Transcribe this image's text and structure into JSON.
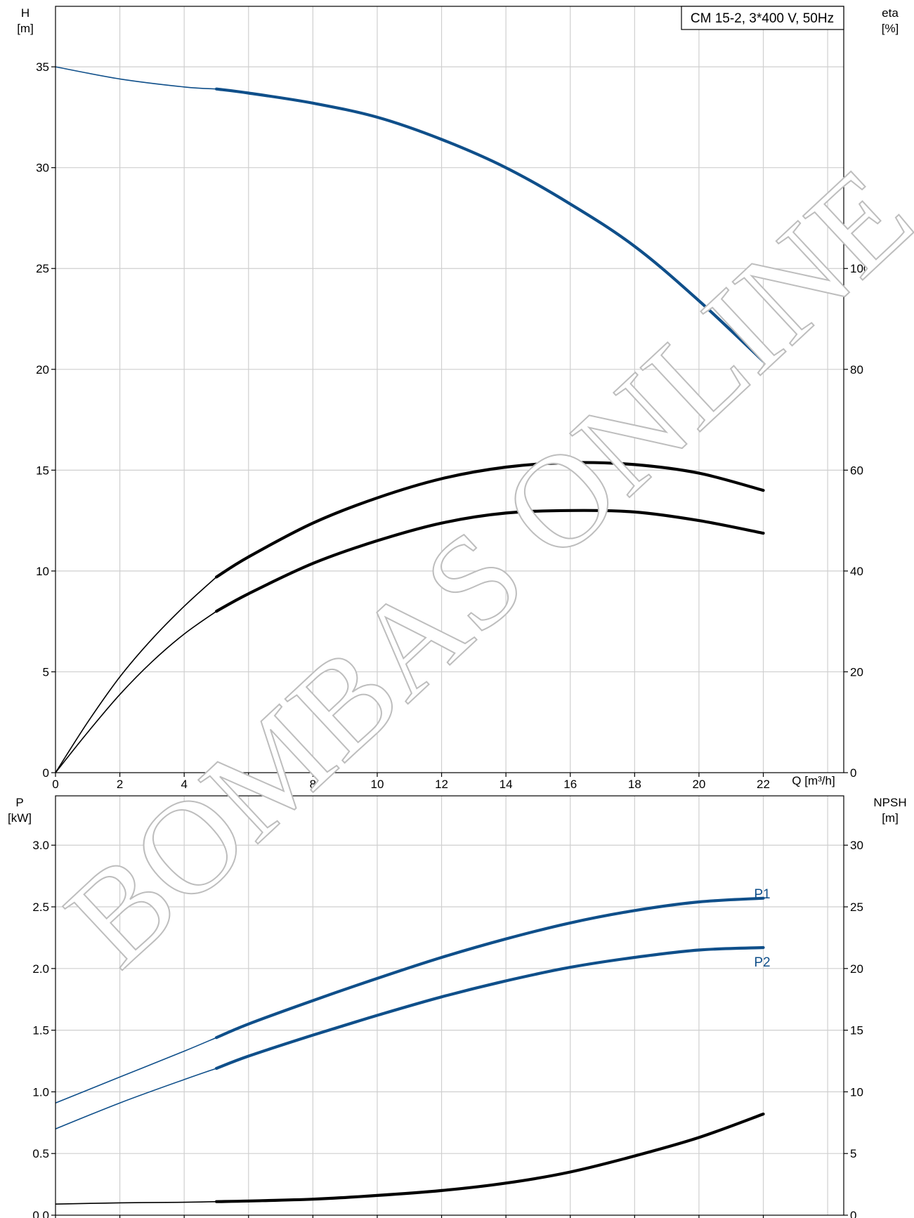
{
  "legend_title": "CM 15-2, 3*400 V, 50Hz",
  "watermark": "BOMBAS ONLINE",
  "colors": {
    "blue": "#0f4f8a",
    "black": "#000000",
    "grid": "#cfcfcf"
  },
  "chart_data": [
    {
      "type": "line",
      "panel": "top",
      "y_left": {
        "label_name": "H",
        "label_unit": "[m]",
        "lim": [
          0,
          38
        ],
        "ticks": [
          0,
          5,
          10,
          15,
          20,
          25,
          30,
          35
        ]
      },
      "y_right": {
        "label_name": "eta",
        "label_unit": "[%]",
        "lim": [
          0,
          152
        ],
        "ticks": [
          0,
          20,
          40,
          60,
          80,
          100
        ]
      },
      "x": {
        "label": "Q [m³/h]",
        "lim": [
          0,
          24.5
        ],
        "ticks": [
          0,
          2,
          4,
          6,
          8,
          10,
          12,
          14,
          16,
          18,
          20,
          22
        ]
      },
      "grid": true,
      "series": [
        {
          "axis": "left",
          "color": "#0f4f8a",
          "solid_from": 5,
          "x": [
            0,
            2,
            4,
            5,
            6,
            8,
            10,
            12,
            14,
            16,
            18,
            20,
            22
          ],
          "y": [
            35.0,
            34.4,
            34.0,
            33.9,
            33.7,
            33.2,
            32.5,
            31.4,
            30.0,
            28.2,
            26.1,
            23.4,
            20.4
          ]
        },
        {
          "axis": "right",
          "color": "#000000",
          "solid_from": 5,
          "x": [
            0,
            1,
            2,
            3,
            4,
            5,
            6,
            8,
            10,
            12,
            14,
            16,
            18,
            20,
            22
          ],
          "y": [
            0,
            10,
            19,
            26.5,
            33,
            38.8,
            42.8,
            49.5,
            54.5,
            58.3,
            60.6,
            61.5,
            61.1,
            59.4,
            56.0
          ]
        },
        {
          "axis": "right",
          "color": "#000000",
          "solid_from": 5,
          "x": [
            0,
            1,
            2,
            3,
            4,
            5,
            6,
            8,
            10,
            12,
            14,
            16,
            18,
            20,
            22
          ],
          "y": [
            0,
            8,
            15.5,
            22,
            27.5,
            32.0,
            35.5,
            41.5,
            46.0,
            49.5,
            51.5,
            52.0,
            51.7,
            50.0,
            47.5
          ]
        }
      ]
    },
    {
      "type": "line",
      "panel": "bottom",
      "y_left": {
        "label_name": "P",
        "label_unit": "[kW]",
        "lim": [
          0,
          3.4
        ],
        "ticks": [
          0.0,
          0.5,
          1.0,
          1.5,
          2.0,
          2.5,
          3.0
        ]
      },
      "y_right": {
        "label_name": "NPSH",
        "label_unit": "[m]",
        "lim": [
          0,
          34
        ],
        "ticks": [
          0,
          5,
          10,
          15,
          20,
          25,
          30
        ]
      },
      "x": {
        "lim": [
          0,
          24.5
        ]
      },
      "grid": true,
      "series": [
        {
          "name": "P1",
          "axis": "left",
          "color": "#0f4f8a",
          "solid_from": 5,
          "x": [
            0,
            2,
            4,
            5,
            6,
            8,
            10,
            12,
            14,
            16,
            18,
            20,
            22
          ],
          "y": [
            0.91,
            1.12,
            1.33,
            1.44,
            1.55,
            1.74,
            1.92,
            2.09,
            2.24,
            2.37,
            2.47,
            2.54,
            2.57
          ]
        },
        {
          "name": "P2",
          "axis": "left",
          "color": "#0f4f8a",
          "solid_from": 5,
          "x": [
            0,
            2,
            4,
            5,
            6,
            8,
            10,
            12,
            14,
            16,
            18,
            20,
            22
          ],
          "y": [
            0.7,
            0.91,
            1.1,
            1.19,
            1.29,
            1.46,
            1.62,
            1.77,
            1.9,
            2.01,
            2.09,
            2.15,
            2.17
          ]
        },
        {
          "axis": "right",
          "color": "#000000",
          "solid_from": 5,
          "x": [
            0,
            2,
            4,
            5,
            6,
            8,
            10,
            12,
            14,
            16,
            18,
            20,
            22
          ],
          "y": [
            0.9,
            1.0,
            1.05,
            1.1,
            1.15,
            1.3,
            1.6,
            2.0,
            2.6,
            3.5,
            4.8,
            6.3,
            8.2
          ]
        }
      ]
    }
  ]
}
